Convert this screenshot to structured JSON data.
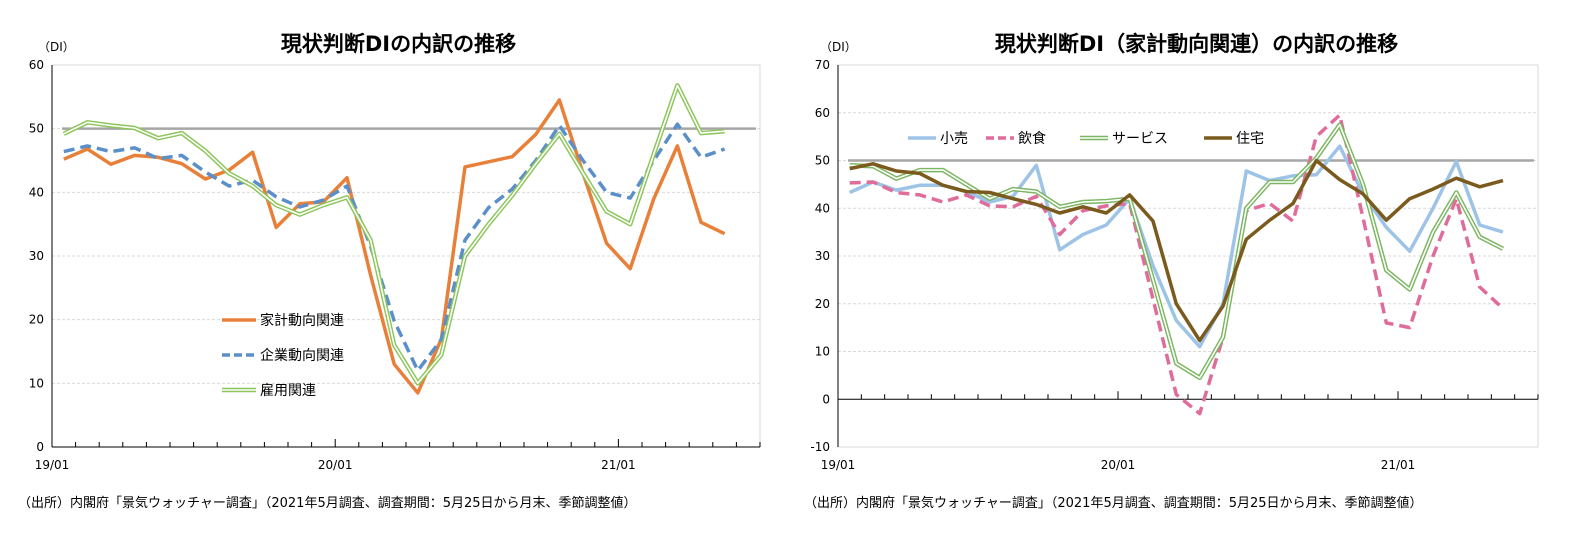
{
  "chart_data": [
    {
      "type": "line",
      "title": "現状判断DIの内訳の推移",
      "unit_label": "（DI）",
      "source": "（出所）内閣府「景気ウォッチャー調査」（2021年5月調査、調査期間：5月25日から月末、季節調整値）",
      "x": [
        "19/01",
        "19/02",
        "19/03",
        "19/04",
        "19/05",
        "19/06",
        "19/07",
        "19/08",
        "19/09",
        "19/10",
        "19/11",
        "19/12",
        "20/01",
        "20/02",
        "20/03",
        "20/04",
        "20/05",
        "20/06",
        "20/07",
        "20/08",
        "20/09",
        "20/10",
        "20/11",
        "20/12",
        "21/01",
        "21/02",
        "21/03",
        "21/04",
        "21/05"
      ],
      "x_tick_labels": [
        "19/01",
        "20/01",
        "21/01"
      ],
      "ylim": [
        0,
        60
      ],
      "yticks": [
        0,
        10,
        20,
        30,
        40,
        50,
        60
      ],
      "reference_line": 50,
      "grid": true,
      "legend_position": "bottom-center",
      "series": [
        {
          "name": "家計動向関連",
          "color": "#e8803a",
          "style": "solid",
          "values": [
            45.2,
            46.8,
            44.4,
            45.8,
            45.5,
            44.5,
            42.1,
            43.5,
            46.3,
            34.5,
            38.2,
            38.5,
            42.3,
            27.0,
            13.0,
            8.5,
            17.0,
            44.0,
            44.8,
            45.6,
            49.1,
            54.5,
            43.0,
            32.0,
            28.0,
            39.0,
            47.3,
            35.3,
            33.5
          ]
        },
        {
          "name": "企業動向関連",
          "color": "#5b8fc9",
          "style": "dashed",
          "values": [
            46.4,
            47.3,
            46.4,
            47.0,
            45.3,
            45.8,
            43.2,
            41.0,
            41.9,
            39.3,
            37.7,
            38.8,
            41.0,
            31.5,
            19.8,
            12.0,
            16.9,
            32.5,
            37.6,
            40.5,
            45.0,
            50.5,
            45.0,
            40.0,
            39.1,
            45.0,
            50.7,
            45.5,
            46.8
          ]
        },
        {
          "name": "雇用関連",
          "color": "#8cc55a",
          "style": "double",
          "values": [
            49.2,
            51.0,
            50.5,
            50.1,
            48.5,
            49.3,
            46.5,
            43.0,
            41.0,
            38.0,
            36.5,
            38.0,
            39.2,
            32.5,
            16.0,
            10.0,
            14.5,
            30.0,
            35.0,
            39.5,
            44.5,
            49.2,
            43.0,
            37.0,
            35.0,
            46.0,
            56.8,
            49.3,
            49.6
          ]
        }
      ]
    },
    {
      "type": "line",
      "title": "現状判断DI（家計動向関連）の内訳の推移",
      "unit_label": "（DI）",
      "source": "（出所）内閣府「景気ウォッチャー調査」（2021年5月調査、調査期間：5月25日から月末、季節調整値）",
      "x": [
        "19/01",
        "19/02",
        "19/03",
        "19/04",
        "19/05",
        "19/06",
        "19/07",
        "19/08",
        "19/09",
        "19/10",
        "19/11",
        "19/12",
        "20/01",
        "20/02",
        "20/03",
        "20/04",
        "20/05",
        "20/06",
        "20/07",
        "20/08",
        "20/09",
        "20/10",
        "20/11",
        "20/12",
        "21/01",
        "21/02",
        "21/03",
        "21/04",
        "21/05"
      ],
      "x_tick_labels": [
        "19/01",
        "20/01",
        "21/01"
      ],
      "ylim": [
        -10,
        70
      ],
      "yticks": [
        -10,
        0,
        10,
        20,
        30,
        40,
        50,
        60,
        70
      ],
      "reference_line": 50,
      "grid": true,
      "legend_position": "top-left",
      "series": [
        {
          "name": "小売",
          "color": "#9dc3e6",
          "style": "solid",
          "values": [
            43.3,
            45.5,
            43.8,
            44.8,
            44.8,
            43.5,
            41.3,
            42.5,
            49.0,
            31.3,
            34.5,
            36.5,
            42.0,
            28.0,
            16.5,
            11.0,
            20.0,
            47.8,
            45.8,
            46.8,
            47.0,
            53.0,
            43.0,
            36.0,
            31.0,
            40.0,
            49.8,
            36.5,
            35.0
          ]
        },
        {
          "name": "飲食",
          "color": "#e06c9b",
          "style": "dashed",
          "values": [
            45.3,
            45.5,
            43.3,
            42.8,
            41.3,
            42.8,
            40.5,
            40.3,
            42.5,
            34.5,
            39.5,
            40.5,
            41.0,
            21.0,
            1.0,
            -3.0,
            13.0,
            39.5,
            41.0,
            37.3,
            55.0,
            59.5,
            38.0,
            16.0,
            15.0,
            30.0,
            42.0,
            23.5,
            19.0
          ]
        },
        {
          "name": "サービス",
          "color": "#7bb661",
          "style": "double",
          "values": [
            49.0,
            48.8,
            46.2,
            48.0,
            48.0,
            45.0,
            42.0,
            44.0,
            43.5,
            40.3,
            41.3,
            41.5,
            42.0,
            25.0,
            7.5,
            4.5,
            13.0,
            40.0,
            45.5,
            45.5,
            50.5,
            57.5,
            45.0,
            27.0,
            23.0,
            35.0,
            43.3,
            34.0,
            31.5
          ]
        },
        {
          "name": "住宅",
          "color": "#7b5a1e",
          "style": "solid",
          "values": [
            48.3,
            49.3,
            47.8,
            47.3,
            44.8,
            43.5,
            43.3,
            42.0,
            40.8,
            39.0,
            40.3,
            39.0,
            42.8,
            37.3,
            20.0,
            12.3,
            19.5,
            33.5,
            37.5,
            41.0,
            50.0,
            46.0,
            43.0,
            37.5,
            42.0,
            44.0,
            46.3,
            44.5,
            45.8
          ]
        }
      ]
    }
  ]
}
